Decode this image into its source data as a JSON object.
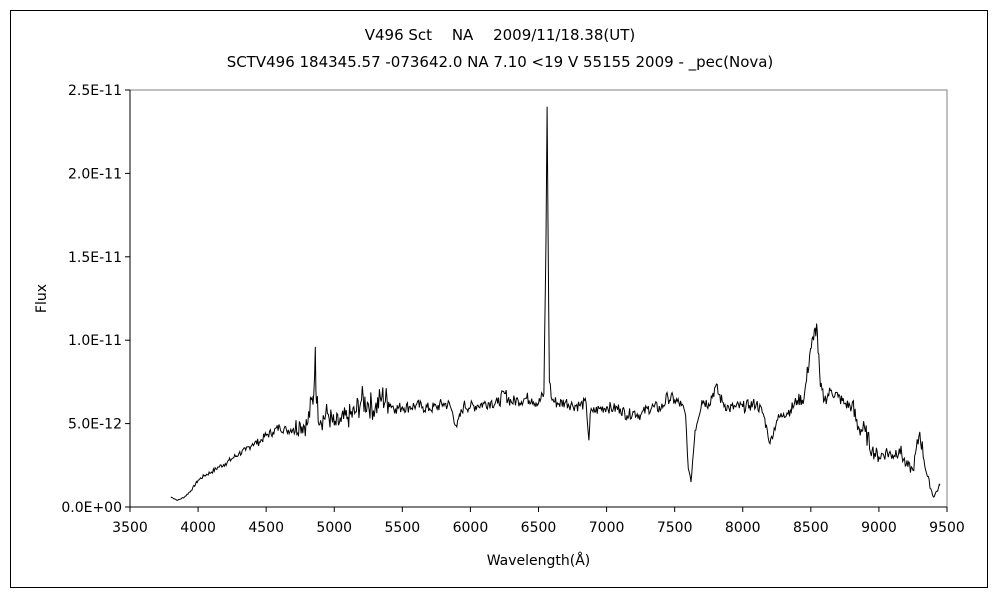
{
  "chart_data": {
    "type": "line",
    "title": "V496 Sct　 NA　 2009/11/18.38(UT)",
    "subtitle": "SCTV496 184345.57 -073642.0 NA 7.10 <19 V 55155 2009 - _pec(Nova)",
    "xlabel": "Wavelength(Å)",
    "ylabel": "Flux",
    "xlim": [
      3500,
      9500
    ],
    "ylim": [
      0,
      2.5e-11
    ],
    "x_ticks": [
      3500,
      4000,
      4500,
      5000,
      5500,
      6000,
      6500,
      7000,
      7500,
      8000,
      8500,
      9000,
      9500
    ],
    "y_ticks": [
      0,
      5e-12,
      1e-11,
      1.5e-11,
      2e-11,
      2.5e-11
    ],
    "x_tick_labels": [
      "3500",
      "4000",
      "4500",
      "5000",
      "5500",
      "6000",
      "6500",
      "7000",
      "7500",
      "8000",
      "8500",
      "9000",
      "9500"
    ],
    "y_tick_labels": [
      "0.0E+00",
      "5.0E-12",
      "1.0E-11",
      "1.5E-11",
      "2.0E-11",
      "2.5E-11"
    ],
    "grid": false,
    "series": [
      {
        "x": [
          3800,
          3850,
          3900,
          3950,
          4000,
          4050,
          4100,
          4150,
          4200,
          4250,
          4300,
          4350,
          4400,
          4450,
          4500,
          4550,
          4600,
          4650,
          4700,
          4750,
          4800,
          4850,
          4861,
          4870,
          4900,
          4950,
          5000,
          5050,
          5100,
          5150,
          5200,
          5250,
          5300,
          5350,
          5400,
          5450,
          5500,
          5550,
          5600,
          5650,
          5700,
          5750,
          5800,
          5850,
          5900,
          5950,
          6000,
          6050,
          6100,
          6150,
          6200,
          6250,
          6300,
          6350,
          6400,
          6450,
          6500,
          6540,
          6555,
          6563,
          6570,
          6580,
          6600,
          6650,
          6700,
          6750,
          6800,
          6850,
          6870,
          6880,
          6900,
          6950,
          7000,
          7050,
          7100,
          7150,
          7200,
          7250,
          7300,
          7350,
          7400,
          7450,
          7500,
          7550,
          7580,
          7600,
          7620,
          7650,
          7700,
          7750,
          7800,
          7850,
          7900,
          7950,
          8000,
          8050,
          8100,
          8150,
          8180,
          8200,
          8250,
          8300,
          8350,
          8400,
          8450,
          8498,
          8520,
          8542,
          8570,
          8600,
          8650,
          8700,
          8750,
          8800,
          8850,
          8900,
          8950,
          9000,
          9050,
          9100,
          9150,
          9200,
          9250,
          9300,
          9350,
          9400,
          9450
        ],
        "y": [
          6e-13,
          4e-13,
          6e-13,
          1e-12,
          1.6e-12,
          1.9e-12,
          2.1e-12,
          2.4e-12,
          2.6e-12,
          2.9e-12,
          3.2e-12,
          3.4e-12,
          3.8e-12,
          3.9e-12,
          4.3e-12,
          4.5e-12,
          4.8e-12,
          4.6e-12,
          4.7e-12,
          5e-12,
          4.9e-12,
          6.8e-12,
          9.6e-12,
          6.2e-12,
          5.2e-12,
          5.6e-12,
          4.9e-12,
          5.1e-12,
          5.4e-12,
          5.6e-12,
          6.4e-12,
          6.2e-12,
          5.9e-12,
          6.6e-12,
          6.3e-12,
          5.9e-12,
          6e-12,
          6e-12,
          6.1e-12,
          6e-12,
          5.9e-12,
          6e-12,
          6.2e-12,
          6.1e-12,
          4.8e-12,
          6.1e-12,
          6e-12,
          6.1e-12,
          6.2e-12,
          6.3e-12,
          6.2e-12,
          6.8e-12,
          6.3e-12,
          6.4e-12,
          6.5e-12,
          6.5e-12,
          6.2e-12,
          6.8e-12,
          1.6e-11,
          2.4e-11,
          1.7e-11,
          7.5e-12,
          6.4e-12,
          6.2e-12,
          6.3e-12,
          6.1e-12,
          6.1e-12,
          6.2e-12,
          4e-12,
          5.6e-12,
          5.7e-12,
          5.9e-12,
          6e-12,
          5.9e-12,
          5.9e-12,
          5.5e-12,
          5.7e-12,
          5.5e-12,
          5.9e-12,
          6e-12,
          5.9e-12,
          6.6e-12,
          6.4e-12,
          6.1e-12,
          5.5e-12,
          2.3e-12,
          1.5e-12,
          4.6e-12,
          6.4e-12,
          6.2e-12,
          7.2e-12,
          6.3e-12,
          5.9e-12,
          6e-12,
          6e-12,
          6.1e-12,
          6.2e-12,
          5.6e-12,
          4.6e-12,
          3.8e-12,
          5.2e-12,
          5.6e-12,
          5.8e-12,
          6.4e-12,
          6.5e-12,
          9.5e-12,
          1e-11,
          1.1e-11,
          7.2e-12,
          6.4e-12,
          7e-12,
          6.6e-12,
          6.2e-12,
          6e-12,
          4.8e-12,
          4.5e-12,
          3.4e-12,
          3e-12,
          3.3e-12,
          3.1e-12,
          3.5e-12,
          2.5e-12,
          2.2e-12,
          4.5e-12,
          2e-12,
          6e-13,
          1.3e-12
        ]
      }
    ]
  }
}
